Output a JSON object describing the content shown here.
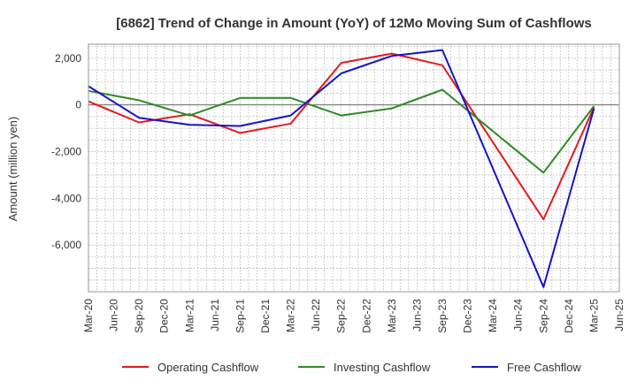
{
  "chart_data": {
    "type": "line",
    "title": "[6862]  Trend of Change in Amount (YoY) of 12Mo Moving Sum of Cashflows",
    "xlabel": "",
    "ylabel": "Amount (million yen)",
    "ylim": [
      -8000,
      2600
    ],
    "yticks": [
      2000,
      0,
      -2000,
      -4000,
      -6000
    ],
    "ytick_labels": [
      "2,000",
      "0",
      "-2,000",
      "-4,000",
      "-6,000"
    ],
    "grid": true,
    "legend_position": "bottom",
    "categories": [
      "Mar-20",
      "Jun-20",
      "Sep-20",
      "Dec-20",
      "Mar-21",
      "Jun-21",
      "Sep-21",
      "Dec-21",
      "Mar-22",
      "Jun-22",
      "Sep-22",
      "Dec-22",
      "Mar-23",
      "Jun-23",
      "Sep-23",
      "Dec-23",
      "Mar-24",
      "Jun-24",
      "Sep-24",
      "Dec-24",
      "Mar-25",
      "Jun-25"
    ],
    "series": [
      {
        "name": "Operating Cashflow",
        "color": "#e41a1c",
        "values": [
          150,
          null,
          -750,
          null,
          -400,
          null,
          -1200,
          null,
          -800,
          null,
          1800,
          null,
          2200,
          null,
          1700,
          null,
          null,
          null,
          -4900,
          null,
          -100,
          null
        ]
      },
      {
        "name": "Investing Cashflow",
        "color": "#2e8b23",
        "values": [
          600,
          null,
          200,
          null,
          -450,
          null,
          300,
          null,
          300,
          null,
          -450,
          null,
          -150,
          null,
          650,
          null,
          null,
          null,
          -2900,
          null,
          -50,
          null
        ]
      },
      {
        "name": "Free Cashflow",
        "color": "#1515c8",
        "values": [
          800,
          null,
          -550,
          null,
          -850,
          null,
          -900,
          null,
          -450,
          null,
          1350,
          null,
          2100,
          null,
          2350,
          null,
          null,
          null,
          -7800,
          null,
          -150,
          null
        ]
      }
    ]
  }
}
